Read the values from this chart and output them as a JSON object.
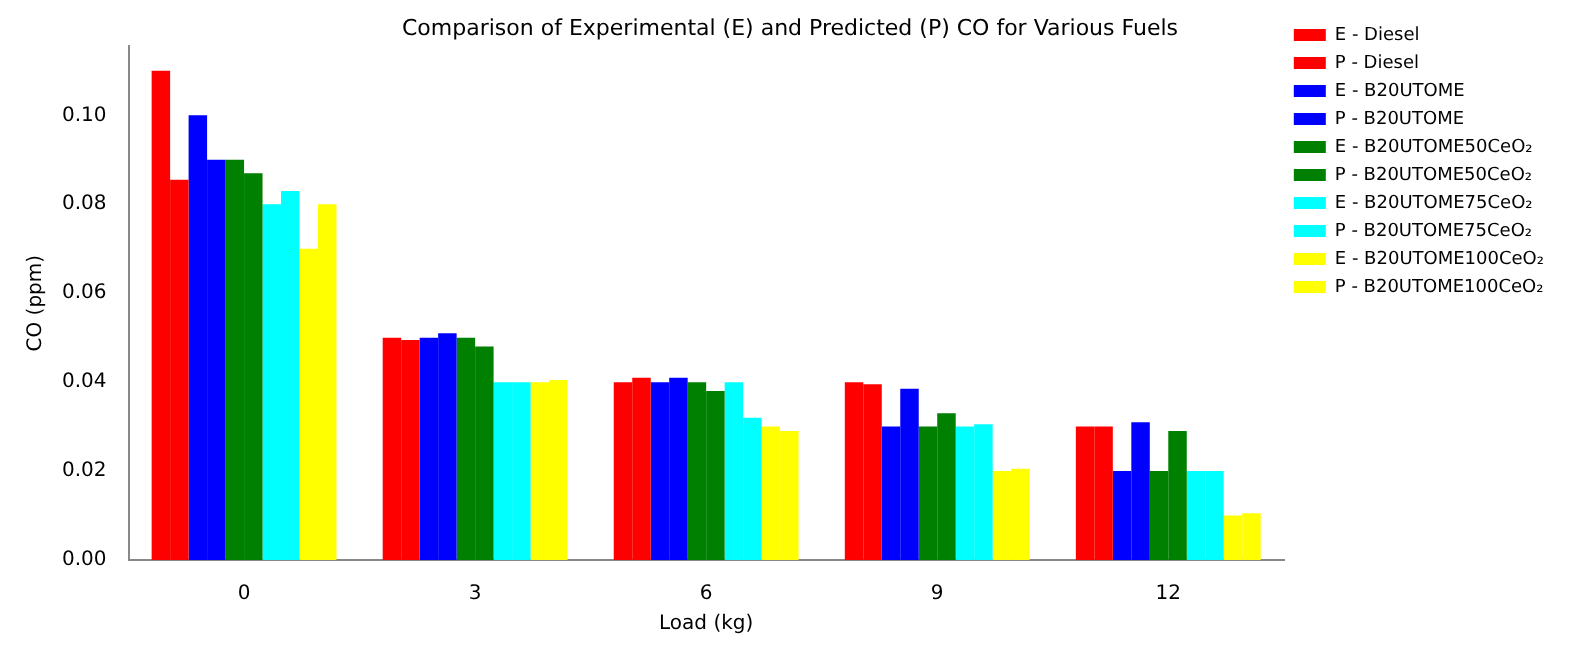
{
  "chart_data": {
    "type": "bar",
    "title": "Comparison of Experimental (E) and Predicted (P) CO for Various Fuels",
    "xlabel": "Load (kg)",
    "ylabel": "CO (ppm)",
    "categories": [
      "0",
      "3",
      "6",
      "9",
      "12"
    ],
    "series": [
      {
        "name": "E - Diesel",
        "color": "#ff0000",
        "values": [
          0.11,
          0.05,
          0.04,
          0.04,
          0.03
        ]
      },
      {
        "name": "P - Diesel",
        "color": "#ff0000",
        "values": [
          0.0855,
          0.0495,
          0.041,
          0.0395,
          0.03
        ]
      },
      {
        "name": "E - B20UTOME",
        "color": "#0000ff",
        "values": [
          0.1,
          0.05,
          0.04,
          0.03,
          0.02
        ]
      },
      {
        "name": "P - B20UTOME",
        "color": "#0000ff",
        "values": [
          0.09,
          0.051,
          0.041,
          0.0385,
          0.031
        ]
      },
      {
        "name": "E - B20UTOME50CeO₂",
        "color": "#008000",
        "values": [
          0.09,
          0.05,
          0.04,
          0.03,
          0.02
        ]
      },
      {
        "name": "P - B20UTOME50CeO₂",
        "color": "#008000",
        "values": [
          0.087,
          0.048,
          0.038,
          0.033,
          0.029
        ]
      },
      {
        "name": "E - B20UTOME75CeO₂",
        "color": "#00ffff",
        "values": [
          0.08,
          0.04,
          0.04,
          0.03,
          0.02
        ]
      },
      {
        "name": "P - B20UTOME75CeO₂",
        "color": "#00ffff",
        "values": [
          0.083,
          0.04,
          0.032,
          0.0305,
          0.02
        ]
      },
      {
        "name": "E - B20UTOME100CeO₂",
        "color": "#ffff00",
        "values": [
          0.07,
          0.04,
          0.03,
          0.02,
          0.01
        ]
      },
      {
        "name": "P - B20UTOME100CeO₂",
        "color": "#ffff00",
        "values": [
          0.08,
          0.0405,
          0.029,
          0.0205,
          0.0105
        ]
      }
    ],
    "ylim": [
      0,
      0.1155
    ],
    "yticks": [
      {
        "value": 0,
        "label": "0.00"
      },
      {
        "value": 0.02,
        "label": "0.02"
      },
      {
        "value": 0.04,
        "label": "0.04"
      },
      {
        "value": 0.06,
        "label": "0.06"
      },
      {
        "value": 0.08,
        "label": "0.08"
      },
      {
        "value": 0.1,
        "label": "0.10"
      }
    ],
    "grid": false,
    "legend": "top right"
  }
}
